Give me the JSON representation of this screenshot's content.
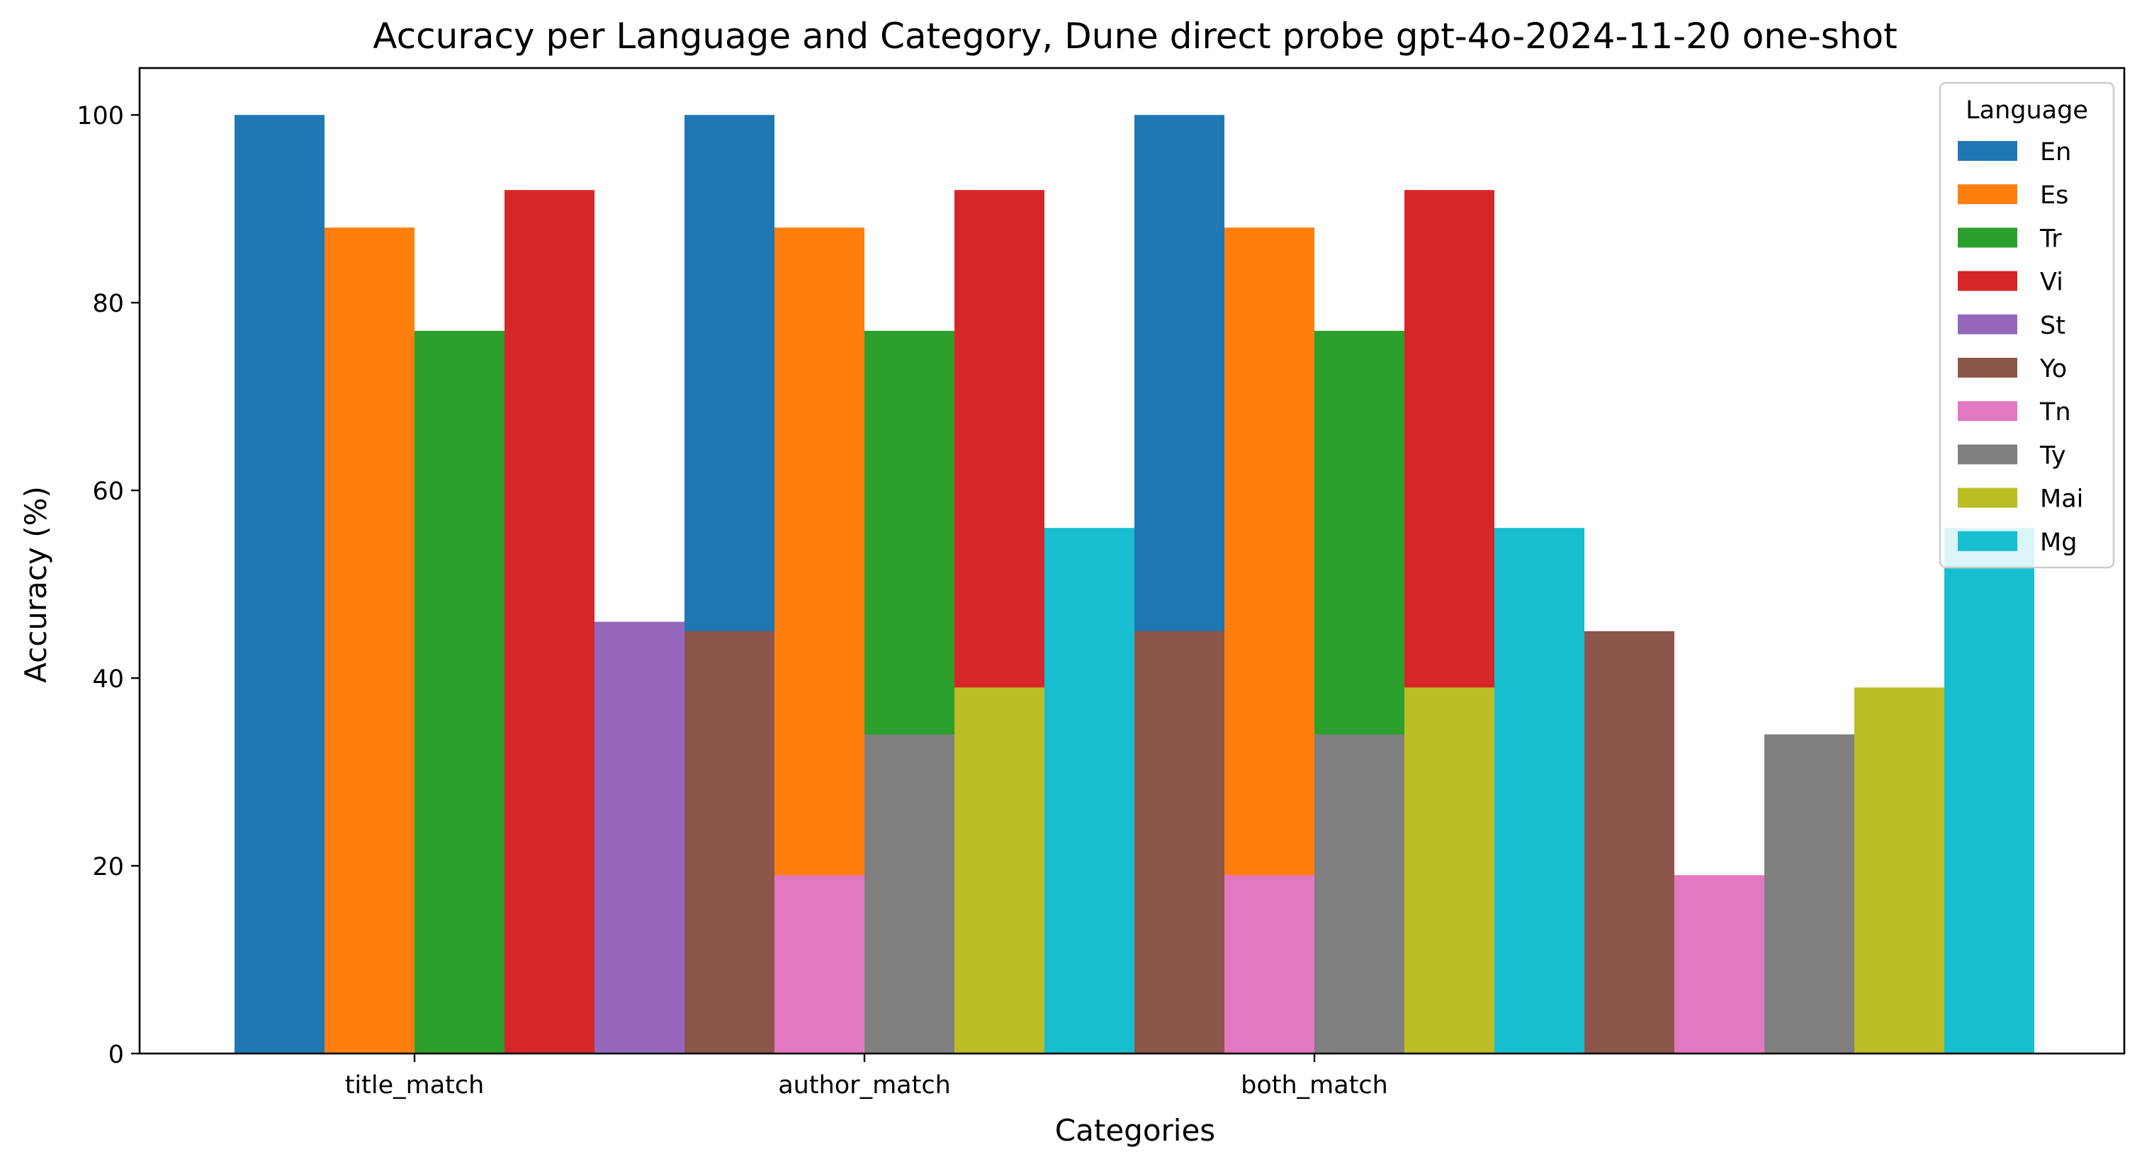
{
  "chart_data": {
    "type": "bar",
    "title": "Accuracy per Language and Category, Dune direct probe gpt-4o-2024-11-20 one-shot",
    "xlabel": "Categories",
    "ylabel": "Accuracy (%)",
    "ylim": [
      0,
      105
    ],
    "yticks": [
      0,
      20,
      40,
      60,
      80,
      100
    ],
    "categories": [
      "title_match",
      "author_match",
      "both_match"
    ],
    "grid": false,
    "legend": {
      "title": "Language",
      "placement": "top-right"
    },
    "series": [
      {
        "name": "En",
        "color": "#1f77b4",
        "values": [
          100,
          100,
          100
        ]
      },
      {
        "name": "Es",
        "color": "#ff7f0e",
        "values": [
          88,
          88,
          88
        ]
      },
      {
        "name": "Tr",
        "color": "#2ca02c",
        "values": [
          77,
          77,
          77
        ]
      },
      {
        "name": "Vi",
        "color": "#d62728",
        "values": [
          92,
          92,
          92
        ]
      },
      {
        "name": "St",
        "color": "#9467bd",
        "values": [
          46,
          0,
          0
        ]
      },
      {
        "name": "Yo",
        "color": "#8c564b",
        "values": [
          45,
          45,
          45
        ]
      },
      {
        "name": "Tn",
        "color": "#e377c2",
        "values": [
          19,
          19,
          19
        ]
      },
      {
        "name": "Ty",
        "color": "#7f7f7f",
        "values": [
          34,
          34,
          34
        ]
      },
      {
        "name": "Mai",
        "color": "#bcbd22",
        "values": [
          39,
          39,
          39
        ]
      },
      {
        "name": "Mg",
        "color": "#17becf",
        "values": [
          56,
          56,
          56
        ]
      }
    ]
  }
}
